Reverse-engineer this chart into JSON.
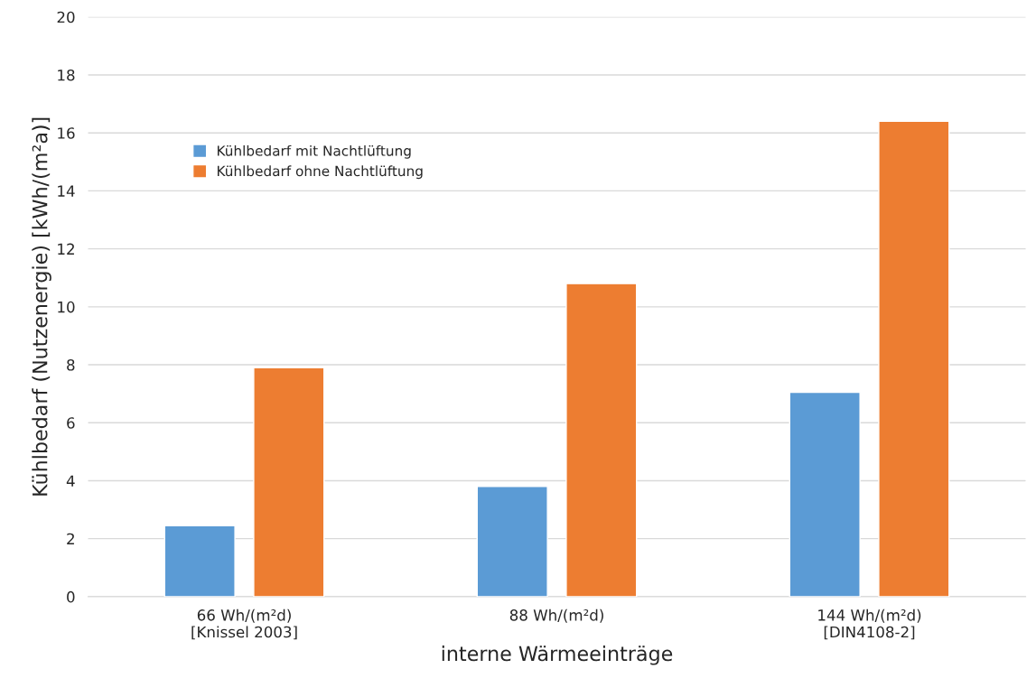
{
  "chart_data": {
    "type": "bar",
    "xlabel": "interne Wärmeeinträge",
    "ylabel": "Kühlbedarf (Nutzenergie) [kWh/(m²a)]",
    "categories": [
      "66 Wh/(m²d)\n[Knissel 2003]",
      "88 Wh/(m²d)",
      "144 Wh/(m²d)\n[DIN4108-2]"
    ],
    "series": [
      {
        "name": "Kühlbedarf mit Nachtlüftung",
        "color": "#5b9bd5",
        "values": [
          2.45,
          3.8,
          7.05
        ]
      },
      {
        "name": "Kühlbedarf ohne Nachtlüftung",
        "color": "#ed7d31",
        "values": [
          7.9,
          10.8,
          16.4
        ]
      }
    ],
    "ylim": [
      0,
      20
    ],
    "yticks": [
      0,
      2,
      4,
      6,
      8,
      10,
      12,
      14,
      16,
      18,
      20
    ],
    "grid": "y",
    "legend": "top left"
  }
}
